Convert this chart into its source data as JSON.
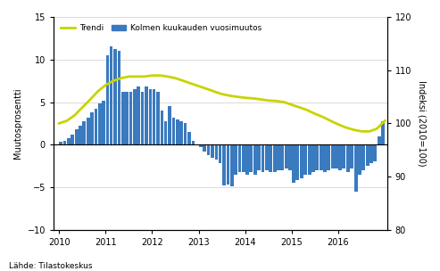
{
  "ylabel_left": "Muutosprosentti",
  "ylabel_right": "Indeksi (2010=100)",
  "source": "Lähde: Tilastokeskus",
  "legend_trendi": "Trendi",
  "legend_bars": "Kolmen kuukauden vuosimuutos",
  "bar_color": "#3a7abf",
  "trend_color": "#c8d400",
  "ylim_left": [
    -10,
    15
  ],
  "ylim_right": [
    80,
    120
  ],
  "yticks_left": [
    -10,
    -5,
    0,
    5,
    10,
    15
  ],
  "yticks_right": [
    80,
    90,
    100,
    110,
    120
  ],
  "xlim": [
    2009.88,
    2017.05
  ],
  "xticks": [
    2010,
    2011,
    2012,
    2013,
    2014,
    2015,
    2016
  ],
  "bar_x": [
    2010.04,
    2010.12,
    2010.21,
    2010.29,
    2010.38,
    2010.46,
    2010.54,
    2010.63,
    2010.71,
    2010.79,
    2010.88,
    2010.96,
    2011.04,
    2011.12,
    2011.21,
    2011.29,
    2011.38,
    2011.46,
    2011.54,
    2011.63,
    2011.71,
    2011.79,
    2011.88,
    2011.96,
    2012.04,
    2012.12,
    2012.21,
    2012.29,
    2012.38,
    2012.46,
    2012.54,
    2012.63,
    2012.71,
    2012.79,
    2012.88,
    2012.96,
    2013.04,
    2013.12,
    2013.21,
    2013.29,
    2013.38,
    2013.46,
    2013.54,
    2013.63,
    2013.71,
    2013.79,
    2013.88,
    2013.96,
    2014.04,
    2014.12,
    2014.21,
    2014.29,
    2014.38,
    2014.46,
    2014.54,
    2014.63,
    2014.71,
    2014.79,
    2014.88,
    2014.96,
    2015.04,
    2015.12,
    2015.21,
    2015.29,
    2015.38,
    2015.46,
    2015.54,
    2015.63,
    2015.71,
    2015.79,
    2015.88,
    2015.96,
    2016.04,
    2016.12,
    2016.21,
    2016.29,
    2016.38,
    2016.46,
    2016.54,
    2016.63,
    2016.71,
    2016.79,
    2016.88,
    2016.96
  ],
  "bar_values": [
    0.3,
    0.5,
    0.8,
    1.2,
    1.8,
    2.2,
    2.8,
    3.2,
    3.8,
    4.2,
    4.8,
    5.2,
    10.5,
    11.5,
    11.2,
    11.0,
    6.2,
    6.2,
    6.2,
    6.5,
    6.8,
    6.2,
    6.8,
    6.5,
    6.5,
    6.2,
    4.0,
    2.8,
    4.5,
    3.2,
    3.0,
    2.8,
    2.5,
    1.5,
    0.5,
    0.0,
    -0.3,
    -0.8,
    -1.2,
    -1.5,
    -1.8,
    -2.2,
    -4.8,
    -4.7,
    -4.9,
    -3.5,
    -3.2,
    -3.2,
    -3.5,
    -3.2,
    -3.5,
    -3.0,
    -3.2,
    -3.0,
    -3.2,
    -3.2,
    -3.0,
    -3.0,
    -2.8,
    -3.0,
    -4.5,
    -4.2,
    -4.0,
    -3.5,
    -3.5,
    -3.2,
    -3.0,
    -3.0,
    -3.2,
    -3.0,
    -2.8,
    -2.8,
    -3.0,
    -2.8,
    -3.2,
    -2.8,
    -5.5,
    -3.5,
    -3.0,
    -2.5,
    -2.2,
    -2.0,
    1.0,
    2.8
  ],
  "trend_x": [
    2010.0,
    2010.17,
    2010.33,
    2010.5,
    2010.67,
    2010.83,
    2011.0,
    2011.17,
    2011.33,
    2011.5,
    2011.67,
    2011.83,
    2012.0,
    2012.17,
    2012.33,
    2012.5,
    2012.67,
    2012.83,
    2013.0,
    2013.17,
    2013.33,
    2013.5,
    2013.67,
    2013.83,
    2014.0,
    2014.17,
    2014.33,
    2014.5,
    2014.67,
    2014.83,
    2015.0,
    2015.17,
    2015.33,
    2015.5,
    2015.67,
    2015.83,
    2016.0,
    2016.17,
    2016.33,
    2016.5,
    2016.67,
    2016.83,
    2017.0
  ],
  "trend_y": [
    100.0,
    100.5,
    101.5,
    103.0,
    104.5,
    106.0,
    107.2,
    108.0,
    108.5,
    108.8,
    108.8,
    108.8,
    109.0,
    109.0,
    108.8,
    108.5,
    108.0,
    107.5,
    107.0,
    106.5,
    106.0,
    105.5,
    105.2,
    105.0,
    104.8,
    104.7,
    104.5,
    104.3,
    104.2,
    104.0,
    103.5,
    103.0,
    102.5,
    101.8,
    101.2,
    100.5,
    99.8,
    99.2,
    98.8,
    98.5,
    98.5,
    99.0,
    100.5
  ]
}
